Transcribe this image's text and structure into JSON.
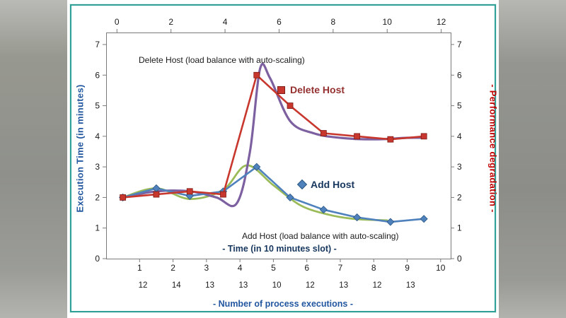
{
  "chart_data": {
    "type": "line",
    "title": "",
    "axes": {
      "left": {
        "title": "Execution Time (in minutes)",
        "title_color": "#2257A0",
        "min": 0,
        "max": 7,
        "ticks": [
          0,
          1,
          2,
          3,
          4,
          5,
          6,
          7
        ]
      },
      "right": {
        "title": "- Performance degradation -",
        "title_color": "#C00000",
        "min": 0,
        "max": 7,
        "ticks": [
          0,
          1,
          2,
          3,
          4,
          5,
          6,
          7
        ]
      },
      "bottom": {
        "title": "- Time (in 10 minutes slot) -",
        "title_color": "#17375E",
        "ticks": [
          1,
          2,
          3,
          4,
          5,
          6,
          7,
          8,
          9,
          10
        ]
      },
      "top": {
        "ticks": [
          0,
          2,
          4,
          6,
          8,
          10,
          12
        ]
      }
    },
    "axis_ranges": {
      "bottom_min": 0,
      "bottom_max": 10.3,
      "top_min": -0.4,
      "top_max": 12.35,
      "y_min": 0,
      "y_max": 7
    },
    "series": [
      {
        "name": "Delete Host (load balance with auto-scaling)",
        "color": "#7D60A0",
        "stroke_width": 3.2,
        "smooth": true,
        "marker": "none",
        "x": [
          0.5,
          1.5,
          2.5,
          3.3,
          3.9,
          4.3,
          4.6,
          4.9,
          5.5,
          6.2,
          7.0,
          8.0,
          9.0,
          9.5
        ],
        "y": [
          2.0,
          2.2,
          2.2,
          2.0,
          1.8,
          3.5,
          6.2,
          5.9,
          4.5,
          4.1,
          3.95,
          3.9,
          3.95,
          3.95
        ]
      },
      {
        "name": "Delete Host",
        "color": "#C8372D",
        "stroke_width": 2.6,
        "smooth": false,
        "marker": "square",
        "x": [
          0.5,
          1.5,
          2.5,
          3.5,
          4.5,
          5.5,
          6.5,
          7.5,
          8.5,
          9.5
        ],
        "y": [
          2.0,
          2.1,
          2.2,
          2.1,
          6.0,
          5.0,
          4.1,
          4.0,
          3.9,
          4.0
        ]
      },
      {
        "name": "Add Host",
        "color": "#4F81BD",
        "stroke_width": 2.6,
        "smooth": false,
        "marker": "diamond",
        "x": [
          0.5,
          1.5,
          2.5,
          3.5,
          4.5,
          5.5,
          6.5,
          7.5,
          8.5,
          9.5
        ],
        "y": [
          2.0,
          2.3,
          2.05,
          2.2,
          3.0,
          2.0,
          1.6,
          1.35,
          1.2,
          1.3
        ]
      },
      {
        "name": "Add Host (load balance with auto-scaling)",
        "color": "#9BBB59",
        "stroke_width": 2.8,
        "smooth": true,
        "marker": "none",
        "x": [
          0.5,
          1.5,
          2.5,
          3.5,
          4.2,
          5.0,
          5.8,
          6.6,
          7.4,
          8.4
        ],
        "y": [
          2.0,
          2.3,
          1.95,
          2.25,
          3.05,
          2.4,
          1.75,
          1.45,
          1.3,
          1.25
        ]
      }
    ],
    "legend": [
      {
        "label": "Delete Host (load balance with auto-scaling)",
        "marker": "none",
        "text_color": "#1a1a1a"
      },
      {
        "label": "Delete Host",
        "marker": "square",
        "marker_color": "#C8372D",
        "text_color": "#943130"
      },
      {
        "label": "Add Host",
        "marker": "diamond",
        "marker_color": "#4F81BD",
        "text_color": "#17375E"
      },
      {
        "label": "Add Host (load balance with auto-scaling)",
        "marker": "none",
        "text_color": "#1a1a1a"
      }
    ],
    "annotations": {
      "process_executions_values": [
        12,
        14,
        13,
        13,
        10,
        12,
        13,
        12,
        13
      ],
      "process_executions_caption": "- Number of process executions -",
      "caption_color": "#2257A0",
      "tick_color": "#1a1a1a"
    }
  }
}
